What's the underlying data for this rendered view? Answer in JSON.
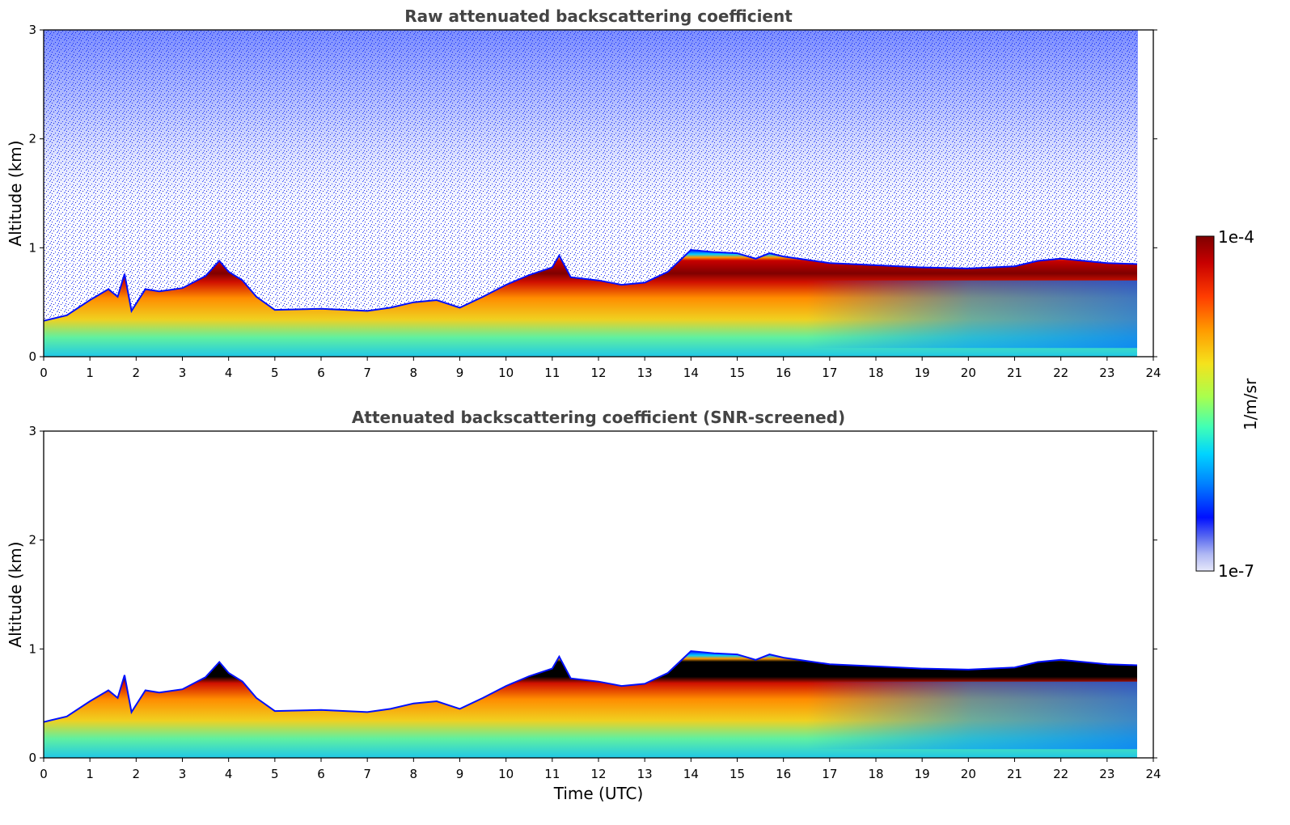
{
  "chart_data": [
    {
      "type": "heatmap",
      "title": "Raw attenuated backscattering coefficient",
      "xlabel": "",
      "ylabel": "Altitude (km)",
      "xlim": [
        0,
        24
      ],
      "ylim": [
        0,
        3
      ],
      "x_ticks": [
        "0",
        "1",
        "2",
        "3",
        "4",
        "5",
        "6",
        "7",
        "8",
        "9",
        "10",
        "11",
        "12",
        "13",
        "14",
        "15",
        "16",
        "17",
        "18",
        "19",
        "20",
        "21",
        "22",
        "23",
        "24"
      ],
      "y_ticks": [
        "0",
        "1",
        "2",
        "3"
      ],
      "data_time_range": [
        0,
        23.65
      ],
      "layer_top_km": [
        [
          0,
          0.33
        ],
        [
          0.5,
          0.38
        ],
        [
          1,
          0.52
        ],
        [
          1.4,
          0.62
        ],
        [
          1.6,
          0.55
        ],
        [
          1.75,
          0.76
        ],
        [
          1.9,
          0.42
        ],
        [
          2.2,
          0.62
        ],
        [
          2.5,
          0.6
        ],
        [
          3,
          0.63
        ],
        [
          3.5,
          0.74
        ],
        [
          3.8,
          0.88
        ],
        [
          4,
          0.78
        ],
        [
          4.3,
          0.7
        ],
        [
          4.6,
          0.55
        ],
        [
          5,
          0.43
        ],
        [
          6,
          0.44
        ],
        [
          7,
          0.42
        ],
        [
          7.5,
          0.45
        ],
        [
          8,
          0.5
        ],
        [
          8.5,
          0.52
        ],
        [
          9,
          0.45
        ],
        [
          9.5,
          0.55
        ],
        [
          10,
          0.66
        ],
        [
          10.5,
          0.75
        ],
        [
          11,
          0.82
        ],
        [
          11.15,
          0.93
        ],
        [
          11.4,
          0.73
        ],
        [
          12,
          0.7
        ],
        [
          12.5,
          0.66
        ],
        [
          13,
          0.68
        ],
        [
          13.5,
          0.78
        ],
        [
          14,
          0.98
        ],
        [
          14.5,
          0.96
        ],
        [
          15,
          0.95
        ],
        [
          15.4,
          0.9
        ],
        [
          15.7,
          0.95
        ],
        [
          16,
          0.92
        ],
        [
          17,
          0.86
        ],
        [
          18,
          0.84
        ],
        [
          19,
          0.82
        ],
        [
          20,
          0.81
        ],
        [
          21,
          0.83
        ],
        [
          21.5,
          0.88
        ],
        [
          22,
          0.9
        ],
        [
          23,
          0.86
        ],
        [
          23.65,
          0.85
        ]
      ],
      "signal_scale": "log",
      "clim": [
        1e-07,
        0.0001
      ]
    },
    {
      "type": "heatmap",
      "title": "Attenuated backscattering coefficient (SNR-screened)",
      "xlabel": "Time (UTC)",
      "ylabel": "Altitude (km)",
      "xlim": [
        0,
        24
      ],
      "ylim": [
        0,
        3
      ],
      "x_ticks": [
        "0",
        "1",
        "2",
        "3",
        "4",
        "5",
        "6",
        "7",
        "8",
        "9",
        "10",
        "11",
        "12",
        "13",
        "14",
        "15",
        "16",
        "17",
        "18",
        "19",
        "20",
        "21",
        "22",
        "23",
        "24"
      ],
      "y_ticks": [
        "0",
        "1",
        "2",
        "3"
      ],
      "data_time_range": [
        0,
        23.65
      ],
      "signal_scale": "log",
      "clim": [
        1e-07,
        0.0001
      ],
      "saturated_color": "#000000"
    }
  ],
  "colorbar": {
    "label": "1/m/sr",
    "max_label": "1e-4",
    "min_label": "1e-7",
    "colormap": "jet",
    "stops": [
      "#7f0000",
      "#c80000",
      "#ff3c00",
      "#ff9a00",
      "#f5e21c",
      "#a8ff4e",
      "#40ffb6",
      "#00d4ff",
      "#0080ff",
      "#0010ff",
      "#5c6cf0",
      "#b0b8f4",
      "#e6e8fa"
    ]
  }
}
